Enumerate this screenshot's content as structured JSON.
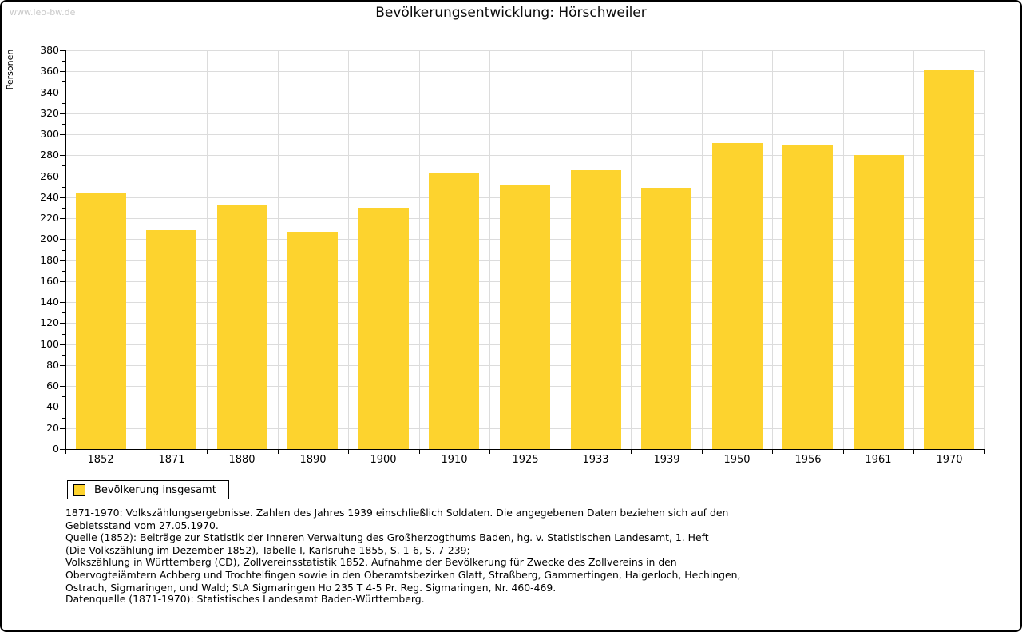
{
  "watermark": "www.leo-bw.de",
  "title": "Bevölkerungsentwicklung: Hörschweiler",
  "chart_data": {
    "type": "bar",
    "title": "Bevölkerungsentwicklung: Hörschweiler",
    "categories": [
      "1852",
      "1871",
      "1880",
      "1890",
      "1900",
      "1910",
      "1925",
      "1933",
      "1939",
      "1950",
      "1956",
      "1961",
      "1970"
    ],
    "series": [
      {
        "name": "Bevölkerung insgesamt",
        "values": [
          244,
          209,
          232,
          207,
          230,
          263,
          252,
          266,
          249,
          292,
          289,
          280,
          361
        ]
      }
    ],
    "xlabel": "",
    "ylabel": "Personen",
    "ylim": [
      0,
      380
    ],
    "ytick_step": 20,
    "ytick_minor_step": 10,
    "grid": true,
    "bar_color": "#fdd32e",
    "gridline_color": "#dcdcdc",
    "axis_color": "#000000",
    "legend_position": "bottom-left"
  },
  "legend": {
    "label": "Bevölkerung insgesamt",
    "swatch_color": "#fdd32e"
  },
  "footnote_lines": [
    "1871-1970: Volkszählungsergebnisse. Zahlen des Jahres 1939 einschließlich Soldaten. Die angegebenen Daten beziehen sich auf den",
    "Gebietsstand vom 27.05.1970.",
    "Quelle (1852): Beiträge zur Statistik der Inneren Verwaltung des Großherzogthums Baden, hg. v. Statistischen Landesamt, 1. Heft",
    "(Die Volkszählung im Dezember 1852), Tabelle I, Karlsruhe 1855, S. 1-6, S. 7-239;",
    "Volkszählung in Württemberg (CD), Zollvereinsstatistik 1852. Aufnahme der Bevölkerung für Zwecke des Zollvereins in den",
    "Obervogteiämtern Achberg und Trochtelfingen sowie in den Oberamtsbezirken Glatt, Straßberg, Gammertingen, Haigerloch, Hechingen,",
    "Ostrach, Sigmaringen, und Wald; StA Sigmaringen Ho 235 T 4-5 Pr. Reg. Sigmaringen, Nr. 460-469."
  ],
  "source_line": "Datenquelle (1871-1970): Statistisches Landesamt Baden-Württemberg."
}
